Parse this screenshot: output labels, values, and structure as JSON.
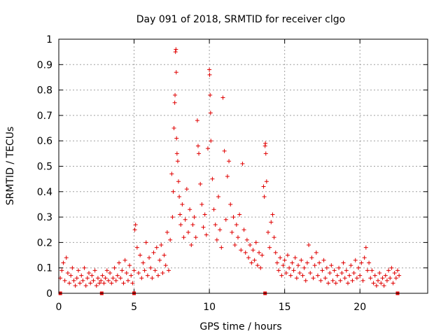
{
  "chart_data": {
    "type": "scatter",
    "title": "Day 091 of 2018, SRMTID for receiver clgo",
    "xlabel": "GPS time / hours",
    "ylabel": "SRMTID / TECUs",
    "xlim": [
      0,
      24.5
    ],
    "ylim": [
      0,
      1
    ],
    "x_ticks": [
      0,
      5,
      10,
      15,
      20
    ],
    "x_tick_labels": [
      "0",
      "5",
      "10",
      "15",
      "20"
    ],
    "y_ticks": [
      0,
      0.1,
      0.2,
      0.3,
      0.4,
      0.5,
      0.6,
      0.7,
      0.8,
      0.9,
      1
    ],
    "y_tick_labels": [
      "0",
      "0.1",
      "0.2",
      "0.3",
      "0.4",
      "0.5",
      "0.6",
      "0.7",
      "0.8",
      "0.9",
      "1"
    ],
    "grid": true,
    "marker": "plus",
    "color": "#e00000",
    "series": [
      {
        "name": "SRMTID",
        "points": [
          [
            0.1,
            0.06
          ],
          [
            0.2,
            0.09
          ],
          [
            0.3,
            0.12
          ],
          [
            0.4,
            0.05
          ],
          [
            0.5,
            0.14
          ],
          [
            0.6,
            0.08
          ],
          [
            0.7,
            0.04
          ],
          [
            0.8,
            0.07
          ],
          [
            0.9,
            0.1
          ],
          [
            1.0,
            0.05
          ],
          [
            1.1,
            0.03
          ],
          [
            1.2,
            0.06
          ],
          [
            1.3,
            0.09
          ],
          [
            1.4,
            0.04
          ],
          [
            1.5,
            0.07
          ],
          [
            1.6,
            0.05
          ],
          [
            1.7,
            0.1
          ],
          [
            1.8,
            0.03
          ],
          [
            1.9,
            0.06
          ],
          [
            2.0,
            0.08
          ],
          [
            2.1,
            0.04
          ],
          [
            2.2,
            0.07
          ],
          [
            2.3,
            0.05
          ],
          [
            2.4,
            0.09
          ],
          [
            2.5,
            0.03
          ],
          [
            2.6,
            0.06
          ],
          [
            2.7,
            0.04
          ],
          [
            2.8,
            0.05
          ],
          [
            2.9,
            0.07
          ],
          [
            3.0,
            0.04
          ],
          [
            3.1,
            0.06
          ],
          [
            3.2,
            0.09
          ],
          [
            3.3,
            0.05
          ],
          [
            3.4,
            0.08
          ],
          [
            3.5,
            0.04
          ],
          [
            3.6,
            0.06
          ],
          [
            3.7,
            0.1
          ],
          [
            3.8,
            0.05
          ],
          [
            3.9,
            0.07
          ],
          [
            4.0,
            0.12
          ],
          [
            4.1,
            0.06
          ],
          [
            4.2,
            0.09
          ],
          [
            4.3,
            0.04
          ],
          [
            4.4,
            0.13
          ],
          [
            4.5,
            0.08
          ],
          [
            4.6,
            0.05
          ],
          [
            4.7,
            0.11
          ],
          [
            4.8,
            0.07
          ],
          [
            4.9,
            0.04
          ],
          [
            5.0,
            0.09
          ],
          [
            5.05,
            0.25
          ],
          [
            5.1,
            0.27
          ],
          [
            5.2,
            0.18
          ],
          [
            5.3,
            0.08
          ],
          [
            5.4,
            0.15
          ],
          [
            5.5,
            0.06
          ],
          [
            5.6,
            0.12
          ],
          [
            5.7,
            0.09
          ],
          [
            5.8,
            0.2
          ],
          [
            5.9,
            0.07
          ],
          [
            6.0,
            0.14
          ],
          [
            6.1,
            0.1
          ],
          [
            6.2,
            0.06
          ],
          [
            6.3,
            0.16
          ],
          [
            6.4,
            0.09
          ],
          [
            6.5,
            0.18
          ],
          [
            6.6,
            0.07
          ],
          [
            6.7,
            0.13
          ],
          [
            6.8,
            0.19
          ],
          [
            6.9,
            0.08
          ],
          [
            7.0,
            0.15
          ],
          [
            7.1,
            0.11
          ],
          [
            7.2,
            0.24
          ],
          [
            7.3,
            0.09
          ],
          [
            7.4,
            0.21
          ],
          [
            7.5,
            0.47
          ],
          [
            7.55,
            0.3
          ],
          [
            7.6,
            0.4
          ],
          [
            7.65,
            0.65
          ],
          [
            7.7,
            0.75
          ],
          [
            7.72,
            0.78
          ],
          [
            7.75,
            0.95
          ],
          [
            7.78,
            0.96
          ],
          [
            7.8,
            0.87
          ],
          [
            7.82,
            0.61
          ],
          [
            7.85,
            0.55
          ],
          [
            7.9,
            0.52
          ],
          [
            7.95,
            0.44
          ],
          [
            8.0,
            0.38
          ],
          [
            8.05,
            0.31
          ],
          [
            8.1,
            0.27
          ],
          [
            8.2,
            0.35
          ],
          [
            8.3,
            0.22
          ],
          [
            8.4,
            0.29
          ],
          [
            8.5,
            0.41
          ],
          [
            8.6,
            0.24
          ],
          [
            8.7,
            0.33
          ],
          [
            8.8,
            0.19
          ],
          [
            8.9,
            0.27
          ],
          [
            9.0,
            0.3
          ],
          [
            9.1,
            0.22
          ],
          [
            9.2,
            0.68
          ],
          [
            9.25,
            0.58
          ],
          [
            9.3,
            0.55
          ],
          [
            9.4,
            0.43
          ],
          [
            9.5,
            0.35
          ],
          [
            9.6,
            0.26
          ],
          [
            9.7,
            0.31
          ],
          [
            9.8,
            0.23
          ],
          [
            9.9,
            0.57
          ],
          [
            10.0,
            0.88
          ],
          [
            10.02,
            0.86
          ],
          [
            10.05,
            0.78
          ],
          [
            10.08,
            0.71
          ],
          [
            10.1,
            0.6
          ],
          [
            10.2,
            0.45
          ],
          [
            10.3,
            0.33
          ],
          [
            10.4,
            0.27
          ],
          [
            10.5,
            0.21
          ],
          [
            10.6,
            0.38
          ],
          [
            10.7,
            0.25
          ],
          [
            10.8,
            0.18
          ],
          [
            10.9,
            0.77
          ],
          [
            11.0,
            0.56
          ],
          [
            11.1,
            0.29
          ],
          [
            11.2,
            0.46
          ],
          [
            11.3,
            0.52
          ],
          [
            11.4,
            0.35
          ],
          [
            11.5,
            0.24
          ],
          [
            11.6,
            0.3
          ],
          [
            11.7,
            0.19
          ],
          [
            11.8,
            0.27
          ],
          [
            11.9,
            0.22
          ],
          [
            12.0,
            0.31
          ],
          [
            12.1,
            0.17
          ],
          [
            12.2,
            0.51
          ],
          [
            12.3,
            0.25
          ],
          [
            12.4,
            0.16
          ],
          [
            12.5,
            0.21
          ],
          [
            12.6,
            0.14
          ],
          [
            12.7,
            0.19
          ],
          [
            12.8,
            0.12
          ],
          [
            12.9,
            0.17
          ],
          [
            13.0,
            0.13
          ],
          [
            13.1,
            0.2
          ],
          [
            13.2,
            0.11
          ],
          [
            13.3,
            0.16
          ],
          [
            13.4,
            0.1
          ],
          [
            13.5,
            0.15
          ],
          [
            13.6,
            0.42
          ],
          [
            13.65,
            0.38
          ],
          [
            13.7,
            0.58
          ],
          [
            13.72,
            0.59
          ],
          [
            13.75,
            0.55
          ],
          [
            13.8,
            0.44
          ],
          [
            13.9,
            0.24
          ],
          [
            14.0,
            0.18
          ],
          [
            14.1,
            0.28
          ],
          [
            14.2,
            0.31
          ],
          [
            14.3,
            0.22
          ],
          [
            14.4,
            0.16
          ],
          [
            14.5,
            0.12
          ],
          [
            14.6,
            0.09
          ],
          [
            14.7,
            0.14
          ],
          [
            14.8,
            0.07
          ],
          [
            14.9,
            0.11
          ],
          [
            15.0,
            0.13
          ],
          [
            15.1,
            0.08
          ],
          [
            15.2,
            0.15
          ],
          [
            15.3,
            0.1
          ],
          [
            15.4,
            0.07
          ],
          [
            15.5,
            0.12
          ],
          [
            15.6,
            0.09
          ],
          [
            15.7,
            0.14
          ],
          [
            15.8,
            0.06
          ],
          [
            15.9,
            0.11
          ],
          [
            16.0,
            0.08
          ],
          [
            16.1,
            0.13
          ],
          [
            16.2,
            0.07
          ],
          [
            16.3,
            0.1
          ],
          [
            16.4,
            0.05
          ],
          [
            16.5,
            0.12
          ],
          [
            16.6,
            0.19
          ],
          [
            16.7,
            0.08
          ],
          [
            16.8,
            0.14
          ],
          [
            16.9,
            0.06
          ],
          [
            17.0,
            0.11
          ],
          [
            17.1,
            0.16
          ],
          [
            17.2,
            0.07
          ],
          [
            17.3,
            0.12
          ],
          [
            17.4,
            0.05
          ],
          [
            17.5,
            0.09
          ],
          [
            17.6,
            0.13
          ],
          [
            17.7,
            0.06
          ],
          [
            17.8,
            0.1
          ],
          [
            17.9,
            0.04
          ],
          [
            18.0,
            0.08
          ],
          [
            18.1,
            0.11
          ],
          [
            18.2,
            0.05
          ],
          [
            18.3,
            0.09
          ],
          [
            18.4,
            0.04
          ],
          [
            18.5,
            0.07
          ],
          [
            18.6,
            0.1
          ],
          [
            18.7,
            0.05
          ],
          [
            18.8,
            0.08
          ],
          [
            18.9,
            0.12
          ],
          [
            19.0,
            0.06
          ],
          [
            19.1,
            0.09
          ],
          [
            19.2,
            0.04
          ],
          [
            19.3,
            0.07
          ],
          [
            19.4,
            0.11
          ],
          [
            19.5,
            0.05
          ],
          [
            19.6,
            0.08
          ],
          [
            19.7,
            0.13
          ],
          [
            19.8,
            0.06
          ],
          [
            19.9,
            0.1
          ],
          [
            20.0,
            0.07
          ],
          [
            20.1,
            0.12
          ],
          [
            20.2,
            0.05
          ],
          [
            20.3,
            0.14
          ],
          [
            20.4,
            0.18
          ],
          [
            20.5,
            0.09
          ],
          [
            20.6,
            0.12
          ],
          [
            20.7,
            0.06
          ],
          [
            20.8,
            0.09
          ],
          [
            20.9,
            0.04
          ],
          [
            21.0,
            0.07
          ],
          [
            21.1,
            0.03
          ],
          [
            21.2,
            0.05
          ],
          [
            21.3,
            0.08
          ],
          [
            21.4,
            0.04
          ],
          [
            21.5,
            0.06
          ],
          [
            21.6,
            0.03
          ],
          [
            21.7,
            0.07
          ],
          [
            21.8,
            0.05
          ],
          [
            21.9,
            0.09
          ],
          [
            22.0,
            0.06
          ],
          [
            22.1,
            0.1
          ],
          [
            22.2,
            0.04
          ],
          [
            22.3,
            0.08
          ],
          [
            22.4,
            0.06
          ],
          [
            22.5,
            0.09
          ],
          [
            22.6,
            0.07
          ]
        ]
      }
    ],
    "gap_markers_x": [
      0.1,
      2.85,
      5.0,
      13.7,
      22.5
    ]
  }
}
